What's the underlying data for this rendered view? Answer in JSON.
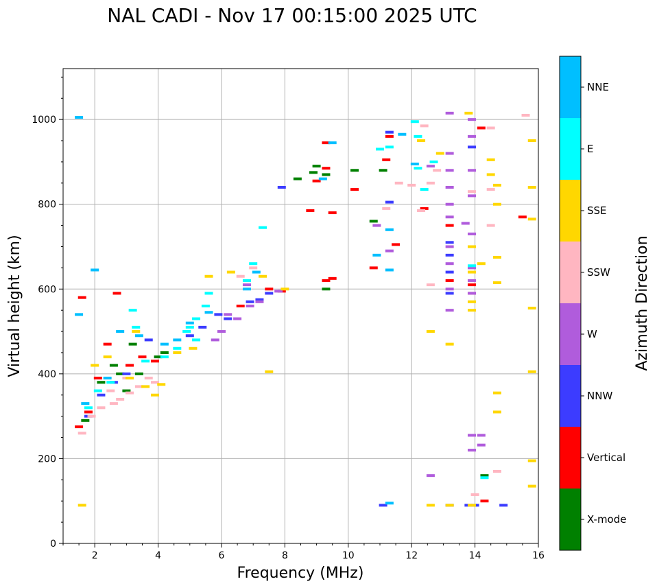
{
  "chart_data": {
    "type": "scatter",
    "title": "NAL CADI - Nov 17 00:15:00 2025 UTC",
    "xlabel": "Frequency (MHz)",
    "ylabel": "Virtual height (km)",
    "xlim": [
      1,
      16
    ],
    "ylim": [
      0,
      1120
    ],
    "xticks": [
      2,
      4,
      6,
      8,
      10,
      12,
      14,
      16
    ],
    "xtick_labels": [
      "2",
      "4",
      "6",
      "8",
      "10",
      "12",
      "14",
      "16"
    ],
    "yticks": [
      0,
      200,
      400,
      600,
      800,
      1000
    ],
    "ytick_labels": [
      "0",
      "200",
      "400",
      "600",
      "800",
      "1000"
    ],
    "grid": true,
    "colorbar": {
      "label": "Azimuth Direction",
      "categories": [
        {
          "name": "X-mode",
          "color": "#008000"
        },
        {
          "name": "Vertical",
          "color": "#ff0000"
        },
        {
          "name": "NNW",
          "color": "#3c3cff"
        },
        {
          "name": "W",
          "color": "#b05cdc"
        },
        {
          "name": "SSW",
          "color": "#ffb6c1"
        },
        {
          "name": "SSE",
          "color": "#ffd700"
        },
        {
          "name": "E",
          "color": "#00ffff"
        },
        {
          "name": "NNE",
          "color": "#00bfff"
        }
      ]
    },
    "series": [
      {
        "name": "X-mode",
        "points": [
          [
            1.7,
            290
          ],
          [
            2.2,
            380
          ],
          [
            2.6,
            420
          ],
          [
            3.0,
            360
          ],
          [
            3.4,
            400
          ],
          [
            4.0,
            440
          ],
          [
            4.2,
            450
          ],
          [
            8.4,
            860
          ],
          [
            8.9,
            875
          ],
          [
            9.0,
            890
          ],
          [
            9.3,
            870
          ],
          [
            10.2,
            880
          ],
          [
            10.8,
            760
          ],
          [
            11.1,
            880
          ],
          [
            14.3,
            160
          ],
          [
            9.3,
            600
          ],
          [
            3.2,
            470
          ],
          [
            2.8,
            400
          ]
        ]
      },
      {
        "name": "Vertical",
        "points": [
          [
            1.5,
            275
          ],
          [
            1.6,
            580
          ],
          [
            1.8,
            310
          ],
          [
            2.1,
            390
          ],
          [
            2.4,
            470
          ],
          [
            2.7,
            590
          ],
          [
            3.1,
            420
          ],
          [
            3.5,
            440
          ],
          [
            3.9,
            430
          ],
          [
            7.9,
            595
          ],
          [
            8.8,
            785
          ],
          [
            9.0,
            855
          ],
          [
            9.3,
            945
          ],
          [
            9.3,
            885
          ],
          [
            9.5,
            780
          ],
          [
            9.3,
            620
          ],
          [
            9.5,
            625
          ],
          [
            10.2,
            835
          ],
          [
            10.8,
            650
          ],
          [
            11.2,
            905
          ],
          [
            11.3,
            960
          ],
          [
            11.5,
            705
          ],
          [
            12.4,
            790
          ],
          [
            13.2,
            750
          ],
          [
            13.2,
            620
          ],
          [
            13.9,
            610
          ],
          [
            13.9,
            590
          ],
          [
            14.2,
            980
          ],
          [
            14.3,
            100
          ],
          [
            15.5,
            770
          ],
          [
            7.5,
            600
          ],
          [
            6.6,
            560
          ]
        ]
      },
      {
        "name": "NNW",
        "points": [
          [
            1.8,
            300
          ],
          [
            2.2,
            350
          ],
          [
            2.6,
            380
          ],
          [
            3.0,
            400
          ],
          [
            3.7,
            480
          ],
          [
            5.0,
            490
          ],
          [
            5.4,
            510
          ],
          [
            5.9,
            540
          ],
          [
            6.2,
            530
          ],
          [
            6.9,
            570
          ],
          [
            7.5,
            590
          ],
          [
            7.9,
            840
          ],
          [
            11.1,
            90
          ],
          [
            11.3,
            805
          ],
          [
            11.3,
            970
          ],
          [
            13.2,
            710
          ],
          [
            13.2,
            680
          ],
          [
            13.2,
            640
          ],
          [
            13.2,
            590
          ],
          [
            13.2,
            90
          ],
          [
            13.8,
            90
          ],
          [
            14.0,
            90
          ],
          [
            14.9,
            90
          ],
          [
            13.9,
            935
          ],
          [
            7.2,
            575
          ]
        ]
      },
      {
        "name": "W",
        "points": [
          [
            6.0,
            500
          ],
          [
            6.2,
            540
          ],
          [
            6.5,
            530
          ],
          [
            6.9,
            560
          ],
          [
            7.2,
            570
          ],
          [
            7.8,
            595
          ],
          [
            5.8,
            480
          ],
          [
            6.8,
            610
          ],
          [
            12.6,
            160
          ],
          [
            12.6,
            890
          ],
          [
            13.2,
            1015
          ],
          [
            13.2,
            920
          ],
          [
            13.2,
            880
          ],
          [
            13.2,
            840
          ],
          [
            13.2,
            800
          ],
          [
            13.2,
            770
          ],
          [
            13.2,
            700
          ],
          [
            13.2,
            660
          ],
          [
            13.2,
            600
          ],
          [
            13.2,
            550
          ],
          [
            13.7,
            755
          ],
          [
            13.9,
            1000
          ],
          [
            13.9,
            960
          ],
          [
            13.9,
            880
          ],
          [
            13.9,
            820
          ],
          [
            13.9,
            730
          ],
          [
            13.9,
            650
          ],
          [
            13.9,
            620
          ],
          [
            13.9,
            590
          ],
          [
            13.9,
            255
          ],
          [
            13.9,
            220
          ],
          [
            14.2,
            255
          ],
          [
            14.2,
            232
          ],
          [
            11.3,
            690
          ],
          [
            10.9,
            750
          ]
        ]
      },
      {
        "name": "SSW",
        "points": [
          [
            1.6,
            260
          ],
          [
            1.9,
            300
          ],
          [
            2.2,
            320
          ],
          [
            2.6,
            330
          ],
          [
            2.8,
            340
          ],
          [
            3.1,
            355
          ],
          [
            3.4,
            370
          ],
          [
            3.7,
            390
          ],
          [
            3.9,
            380
          ],
          [
            2.5,
            360
          ],
          [
            3.0,
            390
          ],
          [
            6.6,
            630
          ],
          [
            7.0,
            650
          ],
          [
            11.2,
            790
          ],
          [
            11.6,
            850
          ],
          [
            12.0,
            845
          ],
          [
            12.3,
            785
          ],
          [
            12.4,
            985
          ],
          [
            12.6,
            850
          ],
          [
            12.6,
            610
          ],
          [
            13.9,
            830
          ],
          [
            14.0,
            115
          ],
          [
            14.5,
            980
          ],
          [
            14.5,
            835
          ],
          [
            14.5,
            750
          ],
          [
            14.7,
            170
          ],
          [
            15.6,
            1010
          ],
          [
            12.8,
            880
          ]
        ]
      },
      {
        "name": "SSE",
        "points": [
          [
            1.6,
            90
          ],
          [
            2.0,
            420
          ],
          [
            2.4,
            440
          ],
          [
            3.1,
            390
          ],
          [
            3.3,
            500
          ],
          [
            3.6,
            370
          ],
          [
            3.9,
            350
          ],
          [
            4.1,
            375
          ],
          [
            4.6,
            450
          ],
          [
            5.1,
            460
          ],
          [
            5.6,
            630
          ],
          [
            6.3,
            640
          ],
          [
            7.3,
            630
          ],
          [
            8.0,
            600
          ],
          [
            7.5,
            405
          ],
          [
            12.3,
            950
          ],
          [
            12.6,
            500
          ],
          [
            12.6,
            90
          ],
          [
            12.9,
            920
          ],
          [
            13.2,
            470
          ],
          [
            13.2,
            90
          ],
          [
            13.9,
            550
          ],
          [
            13.9,
            640
          ],
          [
            13.9,
            700
          ],
          [
            13.9,
            570
          ],
          [
            13.9,
            90
          ],
          [
            14.5,
            905
          ],
          [
            14.5,
            870
          ],
          [
            14.7,
            845
          ],
          [
            14.7,
            800
          ],
          [
            14.7,
            675
          ],
          [
            14.7,
            615
          ],
          [
            14.7,
            355
          ],
          [
            14.7,
            310
          ],
          [
            15.8,
            950
          ],
          [
            15.8,
            840
          ],
          [
            15.8,
            765
          ],
          [
            15.8,
            555
          ],
          [
            15.8,
            405
          ],
          [
            15.8,
            195
          ],
          [
            15.8,
            135
          ],
          [
            13.8,
            1015
          ],
          [
            14.2,
            660
          ]
        ]
      },
      {
        "name": "E",
        "points": [
          [
            1.8,
            320
          ],
          [
            2.1,
            360
          ],
          [
            2.5,
            380
          ],
          [
            3.2,
            550
          ],
          [
            3.3,
            510
          ],
          [
            3.6,
            430
          ],
          [
            4.2,
            440
          ],
          [
            4.6,
            460
          ],
          [
            4.9,
            500
          ],
          [
            5.2,
            530
          ],
          [
            5.5,
            560
          ],
          [
            5.2,
            480
          ],
          [
            5.0,
            510
          ],
          [
            5.6,
            590
          ],
          [
            6.8,
            620
          ],
          [
            7.0,
            660
          ],
          [
            7.3,
            745
          ],
          [
            12.1,
            995
          ],
          [
            12.2,
            960
          ],
          [
            12.7,
            900
          ],
          [
            12.2,
            885
          ],
          [
            12.4,
            835
          ],
          [
            13.9,
            655
          ],
          [
            14.3,
            155
          ],
          [
            11.0,
            930
          ],
          [
            11.3,
            935
          ]
        ]
      },
      {
        "name": "NNE",
        "points": [
          [
            1.5,
            1005
          ],
          [
            1.5,
            540
          ],
          [
            1.7,
            330
          ],
          [
            2.0,
            645
          ],
          [
            2.4,
            390
          ],
          [
            2.8,
            500
          ],
          [
            3.4,
            490
          ],
          [
            4.2,
            470
          ],
          [
            4.6,
            480
          ],
          [
            5.0,
            520
          ],
          [
            5.6,
            545
          ],
          [
            6.8,
            600
          ],
          [
            7.1,
            640
          ],
          [
            9.2,
            860
          ],
          [
            9.5,
            945
          ],
          [
            10.9,
            680
          ],
          [
            11.3,
            645
          ],
          [
            11.3,
            740
          ],
          [
            11.3,
            95
          ],
          [
            11.7,
            965
          ],
          [
            12.1,
            895
          ]
        ]
      }
    ]
  }
}
